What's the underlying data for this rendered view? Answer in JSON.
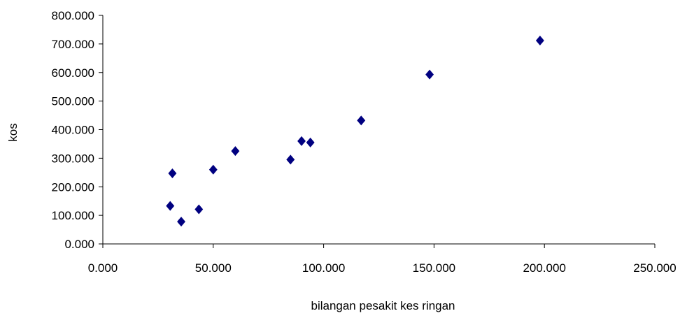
{
  "chart_data": {
    "type": "scatter",
    "title": "",
    "xlabel": "bilangan pesakit kes ringan",
    "ylabel": "kos",
    "xlim": [
      0,
      250
    ],
    "ylim": [
      0,
      800
    ],
    "x_ticks": [
      0,
      50,
      100,
      150,
      200,
      250
    ],
    "x_tick_labels": [
      "0.000",
      "50.000",
      "100.000",
      "150.000",
      "200.000",
      "250.000"
    ],
    "y_ticks": [
      0,
      100,
      200,
      300,
      400,
      500,
      600,
      700,
      800
    ],
    "y_tick_labels": [
      "0.000",
      "100.000",
      "200.000",
      "300.000",
      "400.000",
      "500.000",
      "600.000",
      "700.000",
      "800.000"
    ],
    "grid": false,
    "legend": "none",
    "marker": "diamond",
    "marker_color": "#000080",
    "points": [
      {
        "x": 30.5,
        "y": 133
      },
      {
        "x": 31.5,
        "y": 247
      },
      {
        "x": 35.5,
        "y": 78
      },
      {
        "x": 43.5,
        "y": 121
      },
      {
        "x": 50.0,
        "y": 260
      },
      {
        "x": 60.0,
        "y": 325
      },
      {
        "x": 85.0,
        "y": 295
      },
      {
        "x": 90.0,
        "y": 360
      },
      {
        "x": 94.0,
        "y": 355
      },
      {
        "x": 117.0,
        "y": 432
      },
      {
        "x": 148.0,
        "y": 593
      },
      {
        "x": 198.0,
        "y": 712
      }
    ]
  }
}
